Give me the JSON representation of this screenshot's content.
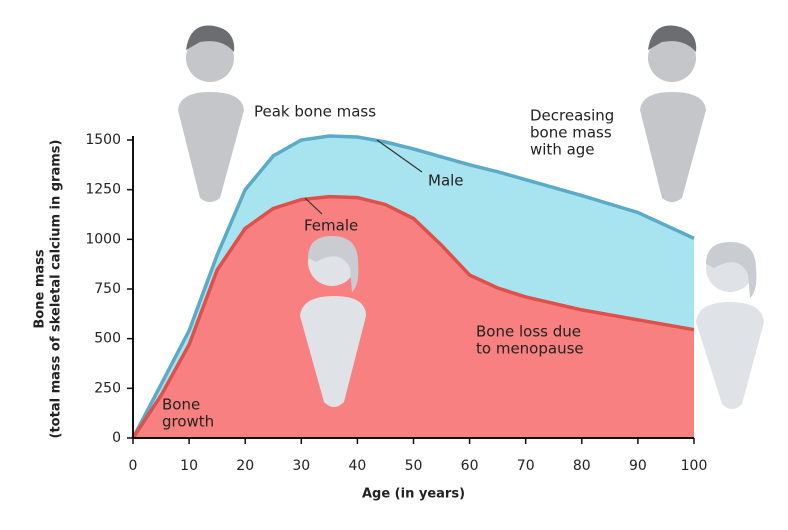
{
  "chart_data": {
    "type": "area",
    "x": [
      0,
      5,
      10,
      15,
      20,
      25,
      30,
      35,
      40,
      45,
      50,
      55,
      60,
      65,
      70,
      80,
      90,
      100
    ],
    "series": [
      {
        "name": "Male",
        "color": "#5aaac8",
        "fill": "#a8e4ef",
        "values": [
          0,
          270,
          540,
          920,
          1250,
          1420,
          1500,
          1520,
          1515,
          1490,
          1455,
          1415,
          1375,
          1340,
          1300,
          1220,
          1135,
          1005
        ]
      },
      {
        "name": "Female",
        "color": "#e0504a",
        "fill": "#f88080",
        "values": [
          0,
          215,
          470,
          845,
          1055,
          1155,
          1200,
          1215,
          1210,
          1175,
          1105,
          970,
          820,
          755,
          710,
          645,
          595,
          545
        ]
      }
    ],
    "xlabel": "Age (in years)",
    "ylabel": [
      "Bone mass",
      "(total mass of skeletal calcium in grams)"
    ],
    "xlim": [
      0,
      100
    ],
    "xticks": [
      0,
      10,
      20,
      30,
      40,
      50,
      60,
      70,
      80,
      90,
      100
    ],
    "ylim": [
      0,
      1500
    ],
    "yticks": [
      0,
      250,
      500,
      750,
      1000,
      1250,
      1500
    ],
    "annotations": [
      {
        "text": [
          "Peak bone mass"
        ]
      },
      {
        "text": [
          "Decreasing",
          "bone mass",
          "with age"
        ]
      },
      {
        "text": [
          "Bone loss due",
          "to menopause"
        ]
      },
      {
        "text": [
          "Bone",
          "growth"
        ]
      }
    ]
  }
}
